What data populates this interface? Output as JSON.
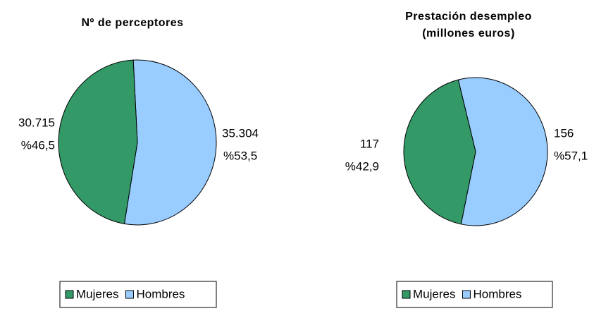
{
  "chart_data": [
    {
      "type": "pie",
      "title": "Nº de perceptores",
      "categories": [
        "Mujeres",
        "Hombres"
      ],
      "values": [
        30715,
        35304
      ],
      "value_labels": [
        "30.715",
        "35.304"
      ],
      "percentages": [
        46.5,
        53.5
      ],
      "percentage_labels": [
        "%46,5",
        "%53,5"
      ],
      "colors": [
        "#339966",
        "#99ccff"
      ],
      "legend": "bottom"
    },
    {
      "type": "pie",
      "title": [
        "Prestación desempleo",
        "(millones euros)"
      ],
      "categories": [
        "Mujeres",
        "Hombres"
      ],
      "values": [
        117,
        156
      ],
      "value_labels": [
        "117",
        "156"
      ],
      "percentages": [
        42.9,
        57.1
      ],
      "percentage_labels": [
        "%42,9",
        "%57,1"
      ],
      "colors": [
        "#339966",
        "#99ccff"
      ],
      "legend": "bottom"
    }
  ]
}
